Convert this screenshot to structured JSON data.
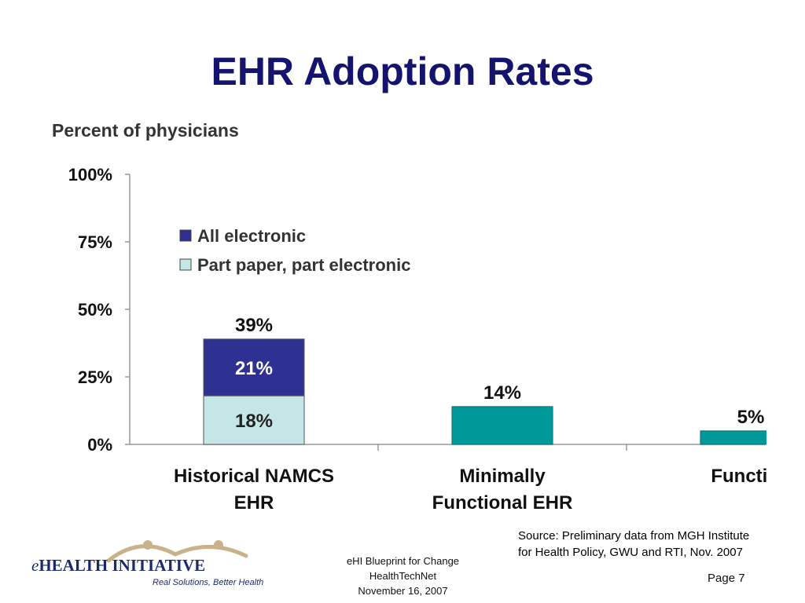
{
  "slide": {
    "title": "EHR Adoption Rates"
  },
  "source_note": {
    "line1": "Source: Preliminary data from MGH Institute",
    "line2": "for Health Policy, GWU and RTI, Nov. 2007"
  },
  "footer": {
    "line1": "eHI Blueprint for Change",
    "line2": "HealthTechNet",
    "line3": "November 16, 2007",
    "page": "Page 7"
  },
  "logo": {
    "prefix": "e",
    "name": "HEALTH INITIATIVE",
    "tagline": "Real Solutions, Better Health"
  },
  "colors": {
    "title": "#14146e",
    "all_electronic": "#2e3192",
    "part_paper": "#c5e6e6",
    "functional": "#009999",
    "axis": "#999999"
  },
  "chart_data": {
    "type": "bar",
    "title": "Percent of physicians",
    "ylim": [
      0,
      100
    ],
    "yticks": [
      "0%",
      "25%",
      "50%",
      "75%",
      "100%"
    ],
    "ytick_values": [
      0,
      25,
      50,
      75,
      100
    ],
    "legend_position": "top-left",
    "legend": [
      "All electronic",
      "Part paper, part electronic"
    ],
    "categories": [
      {
        "lines": [
          "Historical NAMCS",
          "EHR"
        ]
      },
      {
        "lines": [
          "Minimally",
          "Functional EHR"
        ]
      },
      {
        "lines": [
          "Function"
        ]
      }
    ],
    "series": [
      {
        "name": "Part paper, part electronic",
        "values": [
          18,
          null,
          null
        ],
        "labels": [
          "18%",
          "",
          ""
        ]
      },
      {
        "name": "All electronic",
        "values": [
          21,
          null,
          null
        ],
        "labels": [
          "21%",
          "",
          ""
        ]
      },
      {
        "values": [
          null,
          14,
          5
        ],
        "labels": [
          "",
          "",
          ""
        ]
      }
    ],
    "totals": [
      39,
      14,
      5
    ],
    "total_labels": [
      "39%",
      "14%",
      "5%"
    ]
  }
}
